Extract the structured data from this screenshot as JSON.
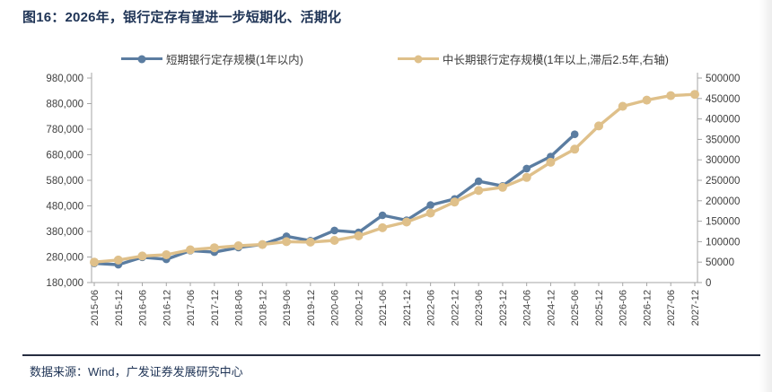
{
  "title": "图16：2026年，银行定存有望进一步短期化、活期化",
  "footer": {
    "source": "数据来源：Wind，广发证券发展研究中心"
  },
  "colors": {
    "short_term_line": "#5B7DA1",
    "long_term_line": "#DFC08A",
    "title_text": "#1E3355",
    "axis_text": "#404040",
    "axis_line": "#A6A6A6",
    "footer_rule": "#262D40"
  },
  "chart_data": {
    "type": "line",
    "title": "图16：2026年，银行定存有望进一步短期化、活期化",
    "legend_position": "top",
    "grid": false,
    "categories": [
      "2015-06",
      "2015-12",
      "2016-06",
      "2016-12",
      "2017-06",
      "2017-12",
      "2018-06",
      "2018-12",
      "2019-06",
      "2019-12",
      "2020-06",
      "2020-12",
      "2021-06",
      "2021-12",
      "2022-06",
      "2022-12",
      "2023-06",
      "2023-12",
      "2024-06",
      "2024-12",
      "2025-06",
      "2025-12",
      "2026-06",
      "2026-12",
      "2027-06",
      "2027-12"
    ],
    "series": [
      {
        "name": "短期银行定存规模(1年以内)",
        "axis": "left",
        "color": "#5B7DA1",
        "values": [
          255000,
          250000,
          279000,
          271000,
          305000,
          299000,
          317000,
          329000,
          361000,
          344000,
          384000,
          376000,
          443000,
          424000,
          483000,
          507000,
          576000,
          558000,
          626000,
          673000,
          760000
        ]
      },
      {
        "name": "中长期银行定存规模(1年以上,滞后2.5年,右轴)",
        "axis": "right",
        "color": "#DFC08A",
        "values": [
          50000,
          55000,
          65000,
          68000,
          80000,
          85000,
          90000,
          93000,
          100000,
          99000,
          103000,
          114000,
          134000,
          148000,
          170000,
          197000,
          225000,
          233000,
          257000,
          294000,
          326000,
          383000,
          431000,
          446000,
          457000,
          460000
        ]
      }
    ],
    "left_axis": {
      "min": 180000,
      "max": 980000,
      "step": 100000,
      "tick_labels": [
        "980,000",
        "880,000",
        "780,000",
        "680,000",
        "580,000",
        "480,000",
        "380,000",
        "280,000",
        "180,000"
      ]
    },
    "right_axis": {
      "min": 0,
      "max": 500000,
      "step": 50000,
      "tick_labels": [
        "500000",
        "450000",
        "400000",
        "350000",
        "300000",
        "250000",
        "200000",
        "150000",
        "100000",
        "50000",
        "0"
      ]
    }
  }
}
